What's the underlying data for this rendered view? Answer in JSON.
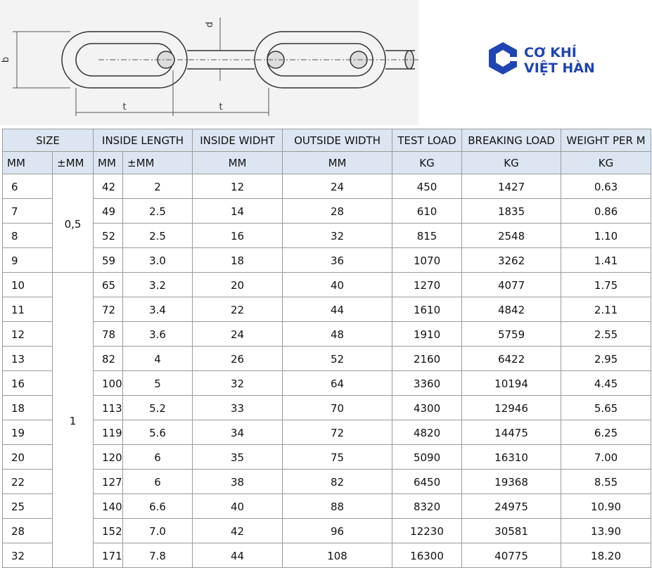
{
  "diagram": {
    "labels": {
      "b": "b",
      "d": "d",
      "t1": "t",
      "t2": "t"
    }
  },
  "logo": {
    "line1": "CƠ KHÍ",
    "line2": "VIỆT HÀN"
  },
  "table": {
    "header_row1": [
      "SIZE",
      "INSIDE LENGTH",
      "INSIDE WIDHT",
      "OUTSIDE WIDTH",
      "TEST LOAD",
      "BREAKING LOAD",
      "WEIGHT PER M"
    ],
    "header_row2": [
      "MM",
      "±MM",
      "MM",
      "±MM",
      "MM",
      "MM",
      "KG",
      "KG",
      "KG"
    ],
    "rows": [
      [
        "6",
        "0,5",
        "42",
        "2",
        "12",
        "24",
        "450",
        "1427",
        "0.63"
      ],
      [
        "7",
        null,
        "49",
        "2.5",
        "14",
        "28",
        "610",
        "1835",
        "0.86"
      ],
      [
        "8",
        null,
        "52",
        "2.5",
        "16",
        "32",
        "815",
        "2548",
        "1.10"
      ],
      [
        "9",
        null,
        "59",
        "3.0",
        "18",
        "36",
        "1070",
        "3262",
        "1.41"
      ],
      [
        "10",
        "1",
        "65",
        "3.2",
        "20",
        "40",
        "1270",
        "4077",
        "1.75"
      ],
      [
        "11",
        null,
        "72",
        "3.4",
        "22",
        "44",
        "1610",
        "4842",
        "2.11"
      ],
      [
        "12",
        null,
        "78",
        "3.6",
        "24",
        "48",
        "1910",
        "5759",
        "2.55"
      ],
      [
        "13",
        null,
        "82",
        "4",
        "26",
        "52",
        "2160",
        "6422",
        "2.95"
      ],
      [
        "16",
        null,
        "100",
        "5",
        "32",
        "64",
        "3360",
        "10194",
        "4.45"
      ],
      [
        "18",
        null,
        "113",
        "5.2",
        "33",
        "70",
        "4300",
        "12946",
        "5.65"
      ],
      [
        "19",
        null,
        "119",
        "5.6",
        "34",
        "72",
        "4820",
        "14475",
        "6.25"
      ],
      [
        "20",
        null,
        "120",
        "6",
        "35",
        "75",
        "5090",
        "16310",
        "7.00"
      ],
      [
        "22",
        null,
        "127",
        "6",
        "38",
        "82",
        "6450",
        "19368",
        "8.55"
      ],
      [
        "25",
        null,
        "140",
        "6.6",
        "40",
        "88",
        "8320",
        "24975",
        "10.90"
      ],
      [
        "28",
        null,
        "152",
        "7.0",
        "42",
        "96",
        "12230",
        "30581",
        "13.90"
      ],
      [
        "32",
        null,
        "171",
        "7.8",
        "44",
        "108",
        "16300",
        "40775",
        "18.20"
      ]
    ]
  }
}
